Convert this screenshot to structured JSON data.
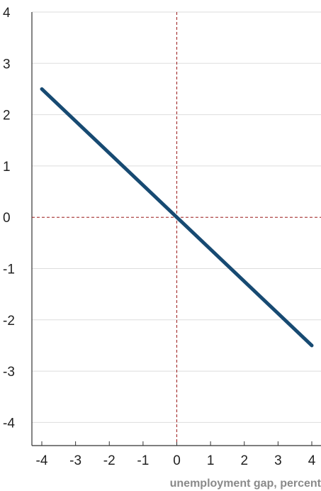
{
  "chart_data": {
    "type": "line",
    "title": "",
    "xlabel": "unemployment gap, percent",
    "ylabel": "",
    "xlim": [
      -4,
      4
    ],
    "ylim": [
      -4,
      4
    ],
    "x_ticks": [
      "-4",
      "-3",
      "-2",
      "-1",
      "0",
      "1",
      "2",
      "3",
      "4"
    ],
    "y_ticks": [
      "4",
      "3",
      "2",
      "1",
      "0",
      "-1",
      "-2",
      "-3",
      "-4"
    ],
    "series": [
      {
        "x": [
          -4,
          4
        ],
        "y": [
          2.5,
          -2.5
        ],
        "color": "#174a72"
      }
    ],
    "reference_lines": [
      {
        "orientation": "vertical",
        "value": 0,
        "color": "#9b1c1c",
        "style": "dashed"
      },
      {
        "orientation": "horizontal",
        "value": 0,
        "color": "#9b1c1c",
        "style": "dashed"
      }
    ],
    "grid": "horizontal",
    "grid_color": "#dddddd",
    "axis_color": "#333333"
  }
}
